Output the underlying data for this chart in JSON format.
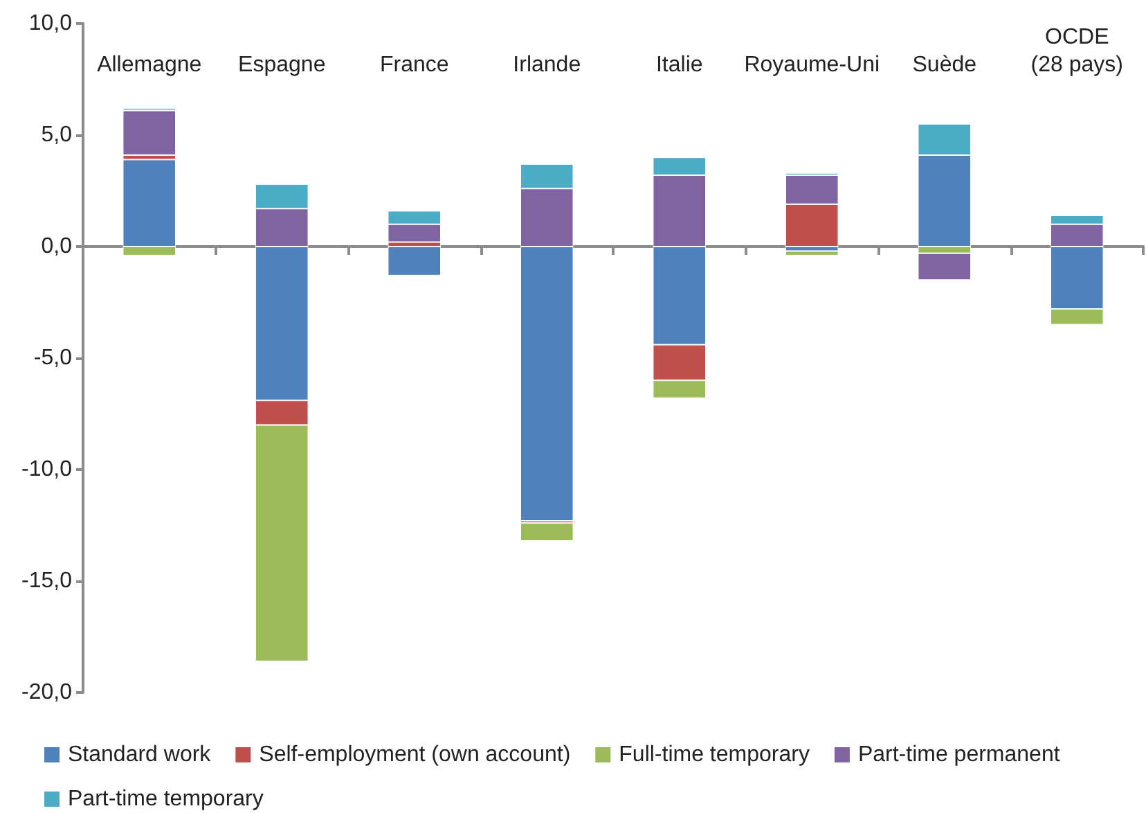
{
  "chart_data": {
    "type": "bar",
    "stacked": true,
    "categories": [
      "Allemagne",
      "Espagne",
      "France",
      "Irlande",
      "Italie",
      "Royaume-Uni",
      "Suède",
      "OCDE (28 pays)"
    ],
    "series": [
      {
        "name": "Standard work",
        "color": "#4f81bd",
        "values": [
          3.9,
          -6.9,
          -1.3,
          -12.3,
          -4.4,
          -0.2,
          4.1,
          -2.8
        ]
      },
      {
        "name": "Self-employment (own account)",
        "color": "#c0504d",
        "values": [
          0.2,
          -1.1,
          0.2,
          -0.1,
          -1.6,
          1.9,
          null,
          null
        ]
      },
      {
        "name": "Full-time temporary",
        "color": "#9bbb59",
        "values": [
          -0.4,
          -10.6,
          null,
          -0.8,
          -0.8,
          -0.2,
          -0.3,
          -0.7
        ]
      },
      {
        "name": "Part-time permanent",
        "color": "#8064a2",
        "values": [
          2.0,
          1.7,
          0.8,
          2.6,
          3.2,
          1.3,
          -1.2,
          1.0
        ]
      },
      {
        "name": "Part-time temporary",
        "color": "#4bacc6",
        "values": [
          0.1,
          1.1,
          0.6,
          1.1,
          0.8,
          0.1,
          1.4,
          0.4
        ]
      }
    ],
    "ylim": [
      -20,
      10
    ],
    "yticks": [
      {
        "value": -20,
        "label": "-20,0"
      },
      {
        "value": -15,
        "label": "-15,0"
      },
      {
        "value": -10,
        "label": "-10,0"
      },
      {
        "value": -5,
        "label": "-5,0"
      },
      {
        "value": 0,
        "label": "0,0"
      },
      {
        "value": 5,
        "label": "5,0"
      },
      {
        "value": 10,
        "label": "10,0"
      }
    ],
    "legend": "bottom"
  }
}
